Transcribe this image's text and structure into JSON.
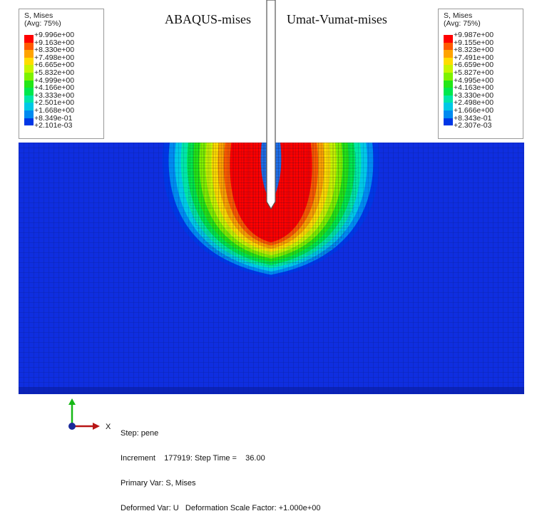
{
  "titles": {
    "left": "ABAQUS-mises",
    "right": "Umat-Vumat-mises"
  },
  "legend_left": {
    "variable": "S, Mises",
    "averaging": "(Avg: 75%)",
    "labels": [
      "+9.996e+00",
      "+9.163e+00",
      "+8.330e+00",
      "+7.498e+00",
      "+6.665e+00",
      "+5.832e+00",
      "+4.999e+00",
      "+4.166e+00",
      "+3.333e+00",
      "+2.501e+00",
      "+1.668e+00",
      "+8.349e-01",
      "+2.101e-03"
    ]
  },
  "legend_right": {
    "variable": "S, Mises",
    "averaging": "(Avg: 75%)",
    "labels": [
      "+9.987e+00",
      "+9.155e+00",
      "+8.323e+00",
      "+7.491e+00",
      "+6.659e+00",
      "+5.827e+00",
      "+4.995e+00",
      "+4.163e+00",
      "+3.330e+00",
      "+2.498e+00",
      "+1.666e+00",
      "+8.343e-01",
      "+2.307e-03"
    ]
  },
  "colors": {
    "contour_bands": [
      "#ff0000",
      "#ff5a00",
      "#ffa300",
      "#ffdd00",
      "#c8f500",
      "#7ef200",
      "#23e617",
      "#00e84d",
      "#00e6a8",
      "#00c8e6",
      "#008af0",
      "#0037e6"
    ],
    "background_field": "#0f2ee0",
    "mesh_line": "#0a1450"
  },
  "triad": {
    "x_label": "X"
  },
  "info": {
    "step": "Step: pene",
    "increment": "Increment    177919: Step Time =    36.00",
    "primary_var": "Primary Var: S, Mises",
    "deformed_var": "Deformed Var: U   Deformation Scale Factor: +1.000e+00"
  }
}
